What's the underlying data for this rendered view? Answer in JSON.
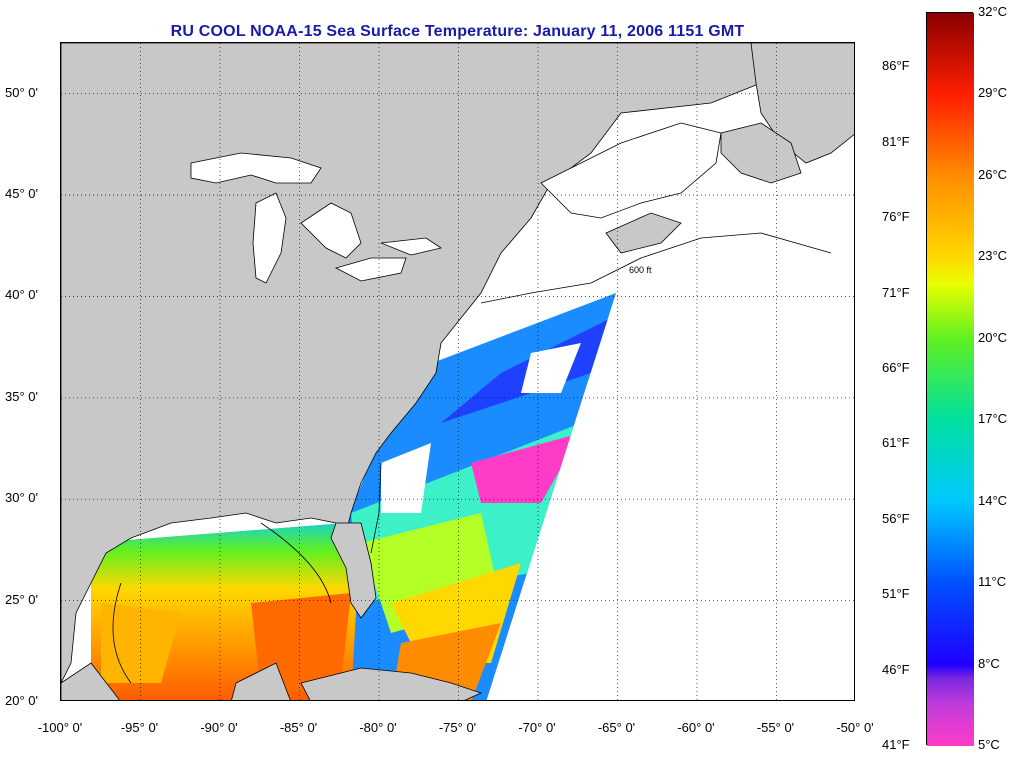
{
  "title": "RU COOL  NOAA-15  Sea Surface Temperature:  January 11, 2006 1151 GMT",
  "colors": {
    "title": "#1a1aaa",
    "land": "#c8c8c8",
    "coast": "#000000",
    "grid": "#000000"
  },
  "map": {
    "lon_range": [
      -100,
      -50
    ],
    "lat_range": [
      20,
      52.5
    ],
    "lat_ticks": [
      {
        "value": 20,
        "label": "20° 0'"
      },
      {
        "value": 25,
        "label": "25° 0'"
      },
      {
        "value": 30,
        "label": "30° 0'"
      },
      {
        "value": 35,
        "label": "35° 0'"
      },
      {
        "value": 40,
        "label": "40° 0'"
      },
      {
        "value": 45,
        "label": "45° 0'"
      },
      {
        "value": 50,
        "label": "50° 0'"
      }
    ],
    "lon_ticks": [
      {
        "value": -100,
        "label": "-100° 0'"
      },
      {
        "value": -95,
        "label": "-95° 0'"
      },
      {
        "value": -90,
        "label": "-90° 0'"
      },
      {
        "value": -85,
        "label": "-85° 0'"
      },
      {
        "value": -80,
        "label": "-80° 0'"
      },
      {
        "value": -75,
        "label": "-75° 0'"
      },
      {
        "value": -70,
        "label": "-70° 0'"
      },
      {
        "value": -65,
        "label": "-65° 0'"
      },
      {
        "value": -60,
        "label": "-60° 0'"
      },
      {
        "value": -55,
        "label": "-55° 0'"
      },
      {
        "value": -50,
        "label": "-50° 0'"
      }
    ],
    "isobath_label": "600 ft"
  },
  "colorbar": {
    "celsius_labels": [
      {
        "value": 5,
        "label": "5°C"
      },
      {
        "value": 8,
        "label": "8°C"
      },
      {
        "value": 11,
        "label": "11°C"
      },
      {
        "value": 14,
        "label": "14°C"
      },
      {
        "value": 17,
        "label": "17°C"
      },
      {
        "value": 20,
        "label": "20°C"
      },
      {
        "value": 23,
        "label": "23°C"
      },
      {
        "value": 26,
        "label": "26°C"
      },
      {
        "value": 29,
        "label": "29°C"
      },
      {
        "value": 32,
        "label": "32°C"
      }
    ],
    "fahrenheit_labels": [
      {
        "value": 41,
        "label": "41°F"
      },
      {
        "value": 46,
        "label": "46°F"
      },
      {
        "value": 51,
        "label": "51°F"
      },
      {
        "value": 56,
        "label": "56°F"
      },
      {
        "value": 61,
        "label": "61°F"
      },
      {
        "value": 66,
        "label": "66°F"
      },
      {
        "value": 71,
        "label": "71°F"
      },
      {
        "value": 76,
        "label": "76°F"
      },
      {
        "value": 81,
        "label": "81°F"
      },
      {
        "value": 86,
        "label": "86°F"
      }
    ],
    "range_c": [
      5,
      32
    ],
    "stops": [
      {
        "value": 5,
        "color": "#ff3cc8"
      },
      {
        "value": 6.5,
        "color": "#c23cdc"
      },
      {
        "value": 7.5,
        "color": "#7a28e0"
      },
      {
        "value": 8,
        "color": "#1e00ff"
      },
      {
        "value": 11,
        "color": "#0050ff"
      },
      {
        "value": 14,
        "color": "#00c8ff"
      },
      {
        "value": 17,
        "color": "#00e0a0"
      },
      {
        "value": 20,
        "color": "#60f020"
      },
      {
        "value": 22,
        "color": "#e8ff00"
      },
      {
        "value": 23,
        "color": "#ffd800"
      },
      {
        "value": 26,
        "color": "#ff8c00"
      },
      {
        "value": 29,
        "color": "#ff1e00"
      },
      {
        "value": 32,
        "color": "#8a0000"
      }
    ]
  }
}
